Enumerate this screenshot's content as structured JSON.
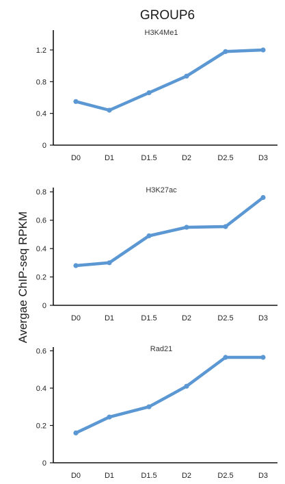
{
  "figure": {
    "title": "GROUP6",
    "ylabel": "Avergae ChIP-seq RPKM"
  },
  "colors": {
    "series": "#5b97d2",
    "axis": "#111111"
  },
  "chart_data": [
    {
      "type": "line",
      "title": "H3K4Me1",
      "x": [
        "D0",
        "D1",
        "D1.5",
        "D2",
        "D2.5",
        "D3"
      ],
      "series": [
        {
          "values": [
            0.55,
            0.44,
            0.66,
            0.87,
            1.18,
            1.2
          ]
        }
      ],
      "yticks": [
        "0",
        "0.4",
        "0.8",
        "1.2"
      ],
      "ylim": [
        0,
        1.45
      ],
      "grid": false
    },
    {
      "type": "line",
      "title": "H3K27ac",
      "x": [
        "D0",
        "D1",
        "D1.5",
        "D2",
        "D2.5",
        "D3"
      ],
      "series": [
        {
          "values": [
            0.28,
            0.3,
            0.49,
            0.55,
            0.555,
            0.76
          ]
        }
      ],
      "yticks": [
        "0",
        "0.2",
        "0.4",
        "0.6",
        "0.8"
      ],
      "ylim": [
        0,
        0.83
      ],
      "grid": false
    },
    {
      "type": "line",
      "title": "Rad21",
      "x": [
        "D0",
        "D1",
        "D1.5",
        "D2",
        "D2.5",
        "D3"
      ],
      "series": [
        {
          "values": [
            0.16,
            0.245,
            0.3,
            0.41,
            0.565,
            0.565
          ]
        }
      ],
      "yticks": [
        "0",
        "0.2",
        "0.4",
        "0.6"
      ],
      "ylim": [
        0,
        0.62
      ],
      "grid": false
    }
  ]
}
